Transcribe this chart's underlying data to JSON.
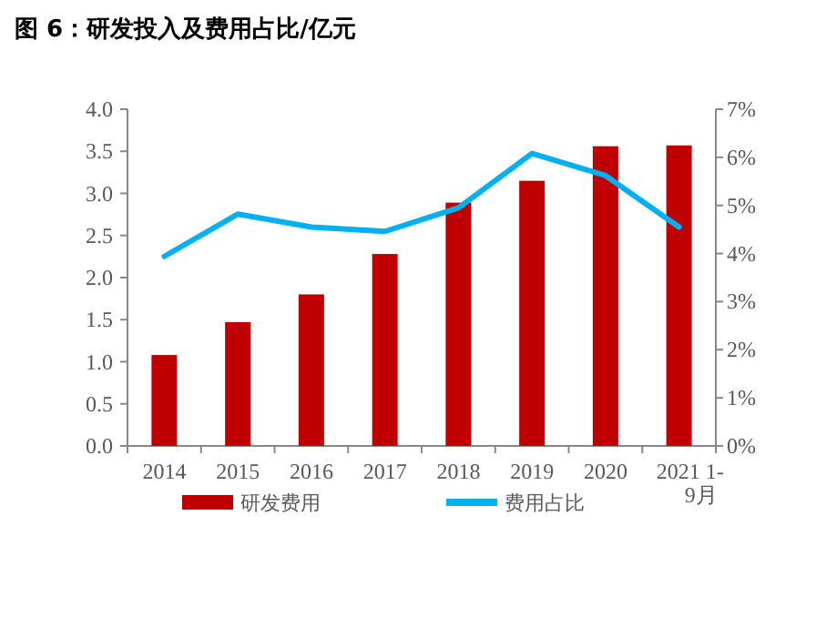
{
  "chart_data": {
    "type": "bar",
    "title": "图 6：研发投入及费用占比/亿元",
    "categories": [
      "2014",
      "2015",
      "2016",
      "2017",
      "2018",
      "2019",
      "2020",
      "2021 1-9月"
    ],
    "series": [
      {
        "name": "研发费用",
        "color": "#c00000",
        "values": [
          1.08,
          1.47,
          1.8,
          2.28,
          2.89,
          3.15,
          3.56,
          3.57
        ]
      },
      {
        "name": "费用占比",
        "type": "line",
        "axis": "y2",
        "color": "#00b0f0",
        "values": [
          3.94,
          4.82,
          4.55,
          4.46,
          4.95,
          6.08,
          5.62,
          4.55
        ]
      }
    ],
    "ylim": [
      0,
      4
    ],
    "yticks": [
      {
        "value": 0,
        "label": "0.0"
      },
      {
        "value": 0.5,
        "label": "0.5"
      },
      {
        "value": 1,
        "label": "1.0"
      },
      {
        "value": 1.5,
        "label": "1.5"
      },
      {
        "value": 2,
        "label": "2.0"
      },
      {
        "value": 2.5,
        "label": "2.5"
      },
      {
        "value": 3,
        "label": "3.0"
      },
      {
        "value": 3.5,
        "label": "3.5"
      },
      {
        "value": 4,
        "label": "4.0"
      }
    ],
    "y2lim": [
      0,
      7
    ],
    "y2ticks": [
      {
        "value": 0,
        "label": "0%"
      },
      {
        "value": 1,
        "label": "1%"
      },
      {
        "value": 2,
        "label": "2%"
      },
      {
        "value": 3,
        "label": "3%"
      },
      {
        "value": 4,
        "label": "4%"
      },
      {
        "value": 5,
        "label": "5%"
      },
      {
        "value": 6,
        "label": "6%"
      },
      {
        "value": 7,
        "label": "7%"
      }
    ],
    "legend": "bottom",
    "grid": false
  }
}
